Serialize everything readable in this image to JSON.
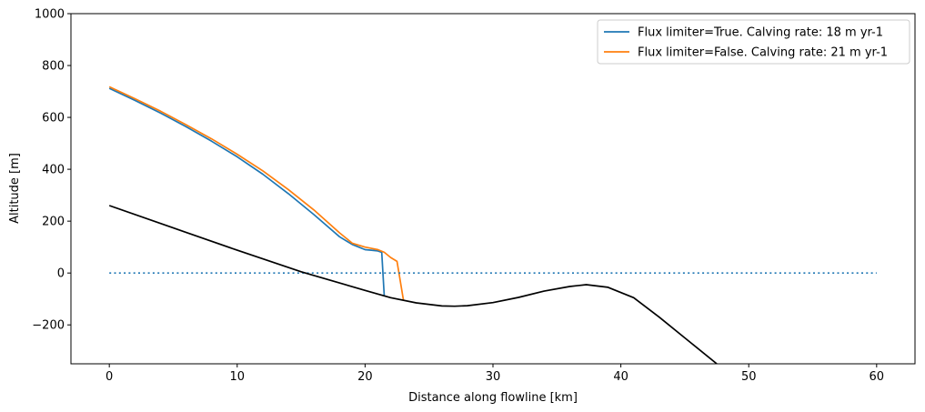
{
  "chart_data": {
    "type": "line",
    "title": "",
    "xlabel": "Distance along flowline [km]",
    "ylabel": "Altitude [m]",
    "xlim": [
      -3,
      63
    ],
    "ylim": [
      -350,
      1000
    ],
    "xticks": [
      0,
      10,
      20,
      30,
      40,
      50,
      60
    ],
    "yticks": [
      -200,
      0,
      200,
      400,
      600,
      800,
      1000
    ],
    "ytick_labels": [
      "−200",
      "0",
      "200",
      "400",
      "600",
      "800",
      "1000"
    ],
    "grid": false,
    "legend_position": "top-right",
    "series": [
      {
        "name": "Flux limiter=True. Calving rate: 18 m yr-1",
        "color": "#1f77b4",
        "style": "solid",
        "x": [
          0,
          2,
          4,
          6,
          8,
          10,
          12,
          14,
          16,
          18,
          19,
          20,
          20.5,
          21,
          21.3,
          21.5
        ],
        "y": [
          712,
          666,
          617,
          564,
          508,
          448,
          381,
          306,
          225,
          140,
          110,
          90,
          88,
          85,
          80,
          -90
        ]
      },
      {
        "name": "Flux limiter=False. Calving rate: 21 m yr-1",
        "color": "#ff7f0e",
        "style": "solid",
        "x": [
          0,
          2,
          4,
          6,
          8,
          10,
          12,
          14,
          16,
          18,
          19,
          20,
          20.5,
          21,
          21.5,
          22,
          22.5,
          23
        ],
        "y": [
          718,
          672,
          624,
          572,
          517,
          458,
          394,
          322,
          243,
          155,
          115,
          100,
          95,
          90,
          80,
          60,
          45,
          -105
        ]
      },
      {
        "name": "Sea level",
        "color": "#1f77b4",
        "style": "dotted",
        "x": [
          0,
          60
        ],
        "y": [
          0,
          0
        ]
      },
      {
        "name": "Bed",
        "color": "#000000",
        "style": "solid",
        "x": [
          0,
          5,
          10,
          15,
          20,
          22,
          24,
          26,
          27,
          28,
          30,
          32,
          34,
          36,
          37.3,
          39,
          41,
          43,
          45,
          47.5
        ],
        "y": [
          260,
          174,
          88,
          5,
          -67,
          -95,
          -115,
          -127,
          -128,
          -126,
          -114,
          -94,
          -70,
          -52,
          -45,
          -55,
          -95,
          -170,
          -250,
          -350
        ]
      }
    ]
  }
}
